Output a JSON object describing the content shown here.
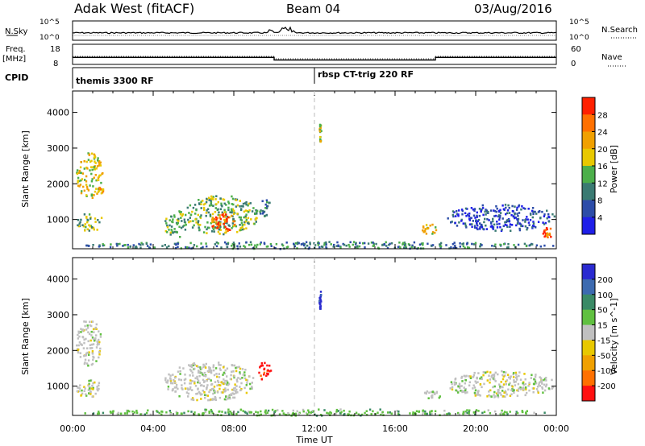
{
  "header": {
    "title": "Adak West (fitACF)",
    "beam": "Beam 04",
    "date": "03/Aug/2016"
  },
  "top_panels": {
    "nsky_label": "N.Sky",
    "nsky_ticks": [
      "10^5",
      "10^0"
    ],
    "nsearch_label": "N.Search",
    "nsearch_ticks": [
      "10^5",
      "10^0"
    ],
    "freq_label": "Freq.",
    "freq_unit": "[MHz]",
    "freq_ticks": [
      "18",
      "8"
    ],
    "nave_label": "Nave",
    "nave_ticks": [
      "60",
      "0"
    ],
    "cpid_label": "CPID",
    "cpid_segments": [
      {
        "start_hour": 0,
        "end_hour": 12,
        "label": "themis 3300 RF"
      },
      {
        "start_hour": 12,
        "end_hour": 24,
        "label": "rbsp CT-trig 220 RF"
      }
    ],
    "freq_steps": [
      {
        "start_hour": 0,
        "end_hour": 10,
        "value": 11.5
      },
      {
        "start_hour": 10,
        "end_hour": 18,
        "value": 10.2
      },
      {
        "start_hour": 18,
        "end_hour": 24,
        "value": 11.5
      }
    ]
  },
  "chart_data": [
    {
      "type": "heatmap",
      "panel": "power",
      "xlabel": "",
      "ylabel": "Slant Range [km]",
      "xlim": [
        0,
        24
      ],
      "ylim": [
        180,
        4600
      ],
      "yticks": [
        "1000",
        "2000",
        "3000",
        "4000"
      ],
      "colorbar_label": "Power [dB]",
      "colorbar_ticks": [
        "4",
        "8",
        "12",
        "16",
        "20",
        "24",
        "28"
      ],
      "colorbar_range": [
        0,
        32
      ],
      "colors": [
        "#1f1fe8",
        "#2c4ca8",
        "#3a7a72",
        "#4caf4a",
        "#e8c800",
        "#f0a000",
        "#ff7000",
        "#ff2000"
      ],
      "regions": [
        {
          "h0": 0.1,
          "h1": 1.5,
          "r0": 700,
          "r1": 1200,
          "level": 3
        },
        {
          "h0": 0.15,
          "h1": 1.5,
          "r0": 1600,
          "r1": 2900,
          "level": 4
        },
        {
          "h0": 1.1,
          "h1": 1.5,
          "r0": 1700,
          "r1": 1950,
          "level": 5
        },
        {
          "h0": 4.5,
          "h1": 5.6,
          "r0": 500,
          "r1": 1300,
          "level": 3
        },
        {
          "h0": 5.5,
          "h1": 9.2,
          "r0": 600,
          "r1": 1700,
          "level": 3
        },
        {
          "h0": 6.8,
          "h1": 8.1,
          "r0": 700,
          "r1": 1200,
          "level": 6
        },
        {
          "h0": 9.2,
          "h1": 9.8,
          "r0": 1100,
          "r1": 1600,
          "level": 2
        },
        {
          "h0": 12.2,
          "h1": 12.3,
          "r0": 3200,
          "r1": 3700,
          "level": 4
        },
        {
          "h0": 17.3,
          "h1": 18.0,
          "r0": 600,
          "r1": 900,
          "level": 4
        },
        {
          "h0": 18.5,
          "h1": 23.9,
          "r0": 700,
          "r1": 1450,
          "level": 1
        },
        {
          "h0": 23.3,
          "h1": 23.8,
          "r0": 500,
          "r1": 800,
          "level": 6
        },
        {
          "h0": 0.1,
          "h1": 23.9,
          "r0": 200,
          "r1": 400,
          "level": 2
        }
      ]
    },
    {
      "type": "heatmap",
      "panel": "velocity",
      "xlabel": "Time UT",
      "ylabel": "Slant Range [km]",
      "xlim": [
        0,
        24
      ],
      "ylim": [
        180,
        4600
      ],
      "xticks": [
        "00:00",
        "04:00",
        "08:00",
        "12:00",
        "16:00",
        "20:00",
        "00:00"
      ],
      "yticks": [
        "1000",
        "2000",
        "3000",
        "4000"
      ],
      "colorbar_label": "Velocity [m s^-1]",
      "colorbar_ticks": [
        "200",
        "100",
        "50",
        "15",
        "-15",
        "-50",
        "-100",
        "-200"
      ],
      "colorbar_range": [
        -250,
        250
      ],
      "colors": [
        "#2a2ad0",
        "#3c6ab0",
        "#3a8a66",
        "#60c040",
        "#c0c0c0",
        "#e8c800",
        "#f0a000",
        "#ff7000",
        "#ff1010"
      ],
      "regions": [
        {
          "h0": 0.1,
          "h1": 1.5,
          "r0": 700,
          "r1": 1200,
          "level": 4
        },
        {
          "h0": 0.15,
          "h1": 1.4,
          "r0": 1600,
          "r1": 2900,
          "level": 4
        },
        {
          "h0": 4.5,
          "h1": 9.0,
          "r0": 600,
          "r1": 1700,
          "level": 4
        },
        {
          "h0": 9.2,
          "h1": 9.8,
          "r0": 1150,
          "r1": 1750,
          "level": 8
        },
        {
          "h0": 12.2,
          "h1": 12.3,
          "r0": 3100,
          "r1": 3700,
          "level": 0
        },
        {
          "h0": 17.3,
          "h1": 18.2,
          "r0": 600,
          "r1": 900,
          "level": 4
        },
        {
          "h0": 18.5,
          "h1": 23.9,
          "r0": 700,
          "r1": 1450,
          "level": 4
        },
        {
          "h0": 0.1,
          "h1": 23.9,
          "r0": 200,
          "r1": 380,
          "level": 3
        }
      ]
    }
  ]
}
